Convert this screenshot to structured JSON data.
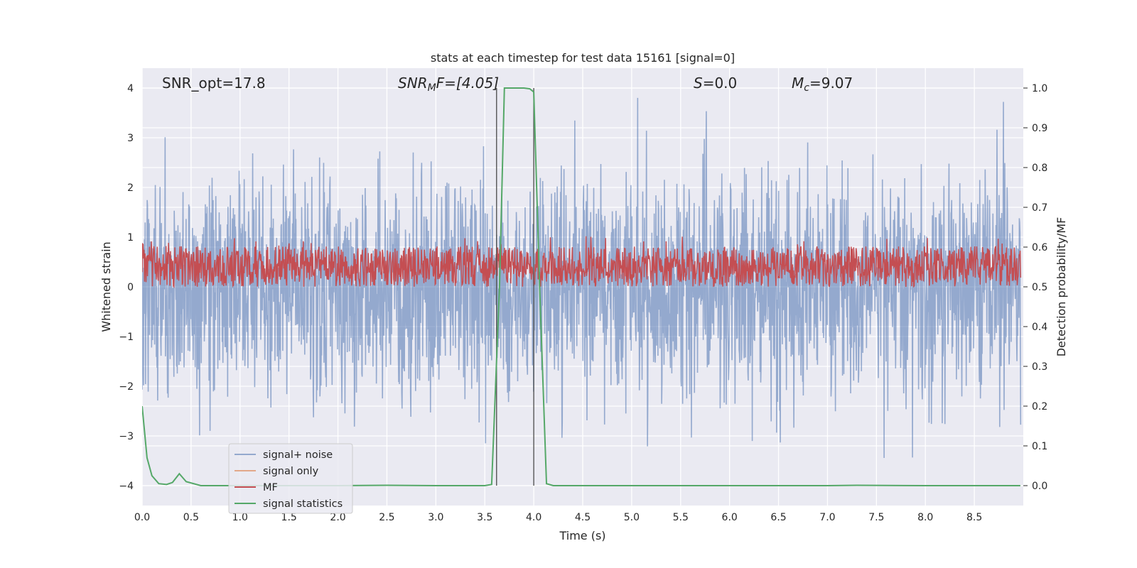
{
  "chart_data": {
    "type": "line",
    "title": "stats at each timestep for test data 15161 [signal=0]",
    "xlabel": "Time (s)",
    "ylabel_left": "Whitened strain",
    "ylabel_right": "Detection probability/MF",
    "xlim": [
      0.0,
      9.0
    ],
    "ylim_left": [
      -4.4,
      4.4
    ],
    "ylim_right": [
      -0.05,
      1.05
    ],
    "xticks": [
      "0.0",
      "0.5",
      "1.0",
      "1.5",
      "2.0",
      "2.5",
      "3.0",
      "3.5",
      "4.0",
      "4.5",
      "5.0",
      "5.5",
      "6.0",
      "6.5",
      "7.0",
      "7.5",
      "8.0",
      "8.5"
    ],
    "yticks_left": [
      "−4",
      "−3",
      "−2",
      "−1",
      "0",
      "1",
      "2",
      "3",
      "4"
    ],
    "yticks_right": [
      "0.0",
      "0.1",
      "0.2",
      "0.3",
      "0.4",
      "0.5",
      "0.6",
      "0.7",
      "0.8",
      "0.9",
      "1.0"
    ],
    "grid": true,
    "background": "#eaeaf2",
    "annotations": {
      "snr_opt": "SNR_opt=17.8",
      "snr_mf_name": "SNR",
      "snr_mf_sub": "M",
      "snr_mf_rest": "F=[4.05]",
      "s_name": "S",
      "s_rest": "=0.0",
      "mc_name": "M",
      "mc_sub": "c",
      "mc_rest": "=9.07"
    },
    "vlines_x": [
      3.62,
      4.0
    ],
    "series": [
      {
        "name": "signal+ noise",
        "color": "#4c72b0",
        "alpha": 0.5,
        "axis": "left",
        "envelope_typical": 1.6,
        "envelope_peak_max": 4.0
      },
      {
        "name": "signal only",
        "color": "#dd8452",
        "alpha": 0.6,
        "axis": "left",
        "values": []
      },
      {
        "name": "MF",
        "color": "#c44e52",
        "axis": "right",
        "band": [
          0.5,
          0.62
        ]
      },
      {
        "name": "signal statistics",
        "color": "#55a868",
        "axis": "right",
        "x": [
          0.0,
          0.05,
          0.1,
          0.17,
          0.25,
          0.31,
          0.38,
          0.45,
          0.6,
          1.0,
          1.5,
          2.0,
          2.5,
          3.0,
          3.5,
          3.57,
          3.65,
          3.7,
          3.8,
          3.9,
          3.96,
          4.0,
          4.06,
          4.13,
          4.2,
          5.0,
          6.0,
          7.0,
          7.3,
          8.0,
          8.97
        ],
        "values": [
          0.2,
          0.07,
          0.025,
          0.005,
          0.003,
          0.008,
          0.03,
          0.01,
          0.0,
          0.0,
          0.0,
          0.0,
          0.001,
          0.0,
          0.0,
          0.003,
          0.5,
          1.0,
          1.0,
          1.0,
          0.998,
          0.99,
          0.5,
          0.005,
          0.0,
          0.0,
          0.0,
          0.0,
          0.001,
          0.0,
          0.0
        ]
      }
    ],
    "legend": {
      "placement": "lower-left",
      "entries": [
        "signal+ noise",
        "signal only",
        "MF",
        "signal statistics"
      ]
    }
  }
}
